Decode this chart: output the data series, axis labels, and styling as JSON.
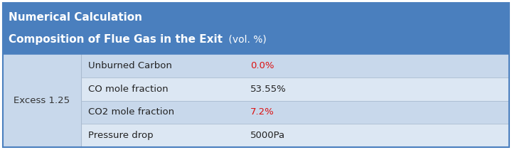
{
  "title_line1": "Numerical Calculation",
  "title_line2": "Composition of Flue Gas in the Exit",
  "title_line2_suffix": " (vol. %)",
  "header_bg": "#4a7fbe",
  "header_text_color": "#ffffff",
  "col1_label": "Excess 1.25",
  "table_bg": "#c8d8eb",
  "rows": [
    {
      "label": "Unburned Carbon",
      "value": "0.0%",
      "value_color": "#dd1111",
      "row_bg": "#c8d8eb"
    },
    {
      "label": "CO mole fraction",
      "value": "53.55%",
      "value_color": "#222222",
      "row_bg": "#dce7f3"
    },
    {
      "label": "CO2 mole fraction",
      "value": "7.2%",
      "value_color": "#dd1111",
      "row_bg": "#c8d8eb"
    },
    {
      "label": "Pressure drop",
      "value": "5000Pa",
      "value_color": "#222222",
      "row_bg": "#dce7f3"
    }
  ],
  "border_color": "#4a7fbe",
  "fig_width": 7.2,
  "fig_height": 2.11,
  "dpi": 100
}
